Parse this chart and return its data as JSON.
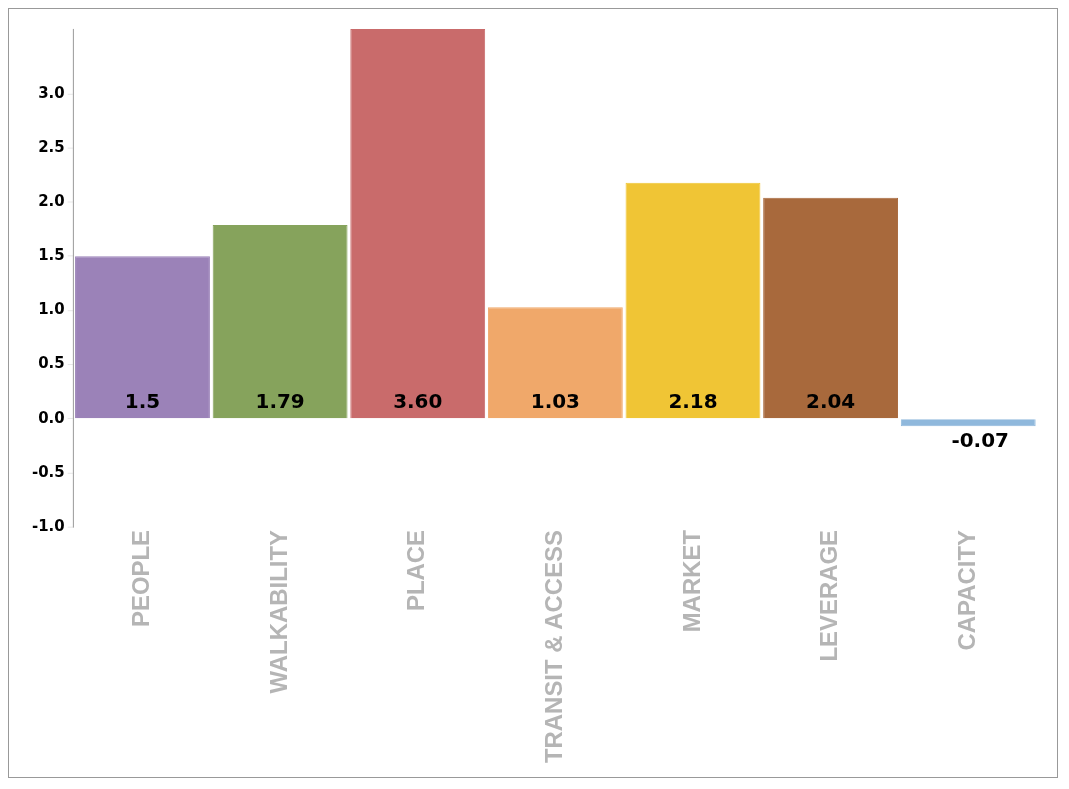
{
  "chart_data": {
    "type": "bar",
    "categories": [
      "PEOPLE",
      "WALKABILITY",
      "PLACE",
      "TRANSIT & ACCESS",
      "MARKET",
      "LEVERAGE",
      "CAPACITY"
    ],
    "values": [
      1.5,
      1.79,
      3.6,
      1.03,
      2.18,
      2.04,
      -0.07
    ],
    "value_labels": [
      "1.5",
      "1.79",
      "3.60",
      "1.03",
      "2.18",
      "2.04",
      "-0.07"
    ],
    "colors": [
      "#9b82b8",
      "#86a35c",
      "#c96b6b",
      "#f0a86a",
      "#f0c535",
      "#a8693c",
      "#8fb8dc"
    ],
    "ylim": [
      -1,
      3.6
    ],
    "yticks": [
      {
        "value": -1,
        "label": "-1.0"
      },
      {
        "value": -0.5,
        "label": "-0.5"
      },
      {
        "value": 0,
        "label": "0.0"
      },
      {
        "value": 0.5,
        "label": "0.5"
      },
      {
        "value": 1,
        "label": "1.0"
      },
      {
        "value": 1.5,
        "label": "1.5"
      },
      {
        "value": 2,
        "label": "2.0"
      },
      {
        "value": 2.5,
        "label": "2.5"
      },
      {
        "value": 3,
        "label": "3.0"
      }
    ],
    "grid": false,
    "legend": false
  }
}
